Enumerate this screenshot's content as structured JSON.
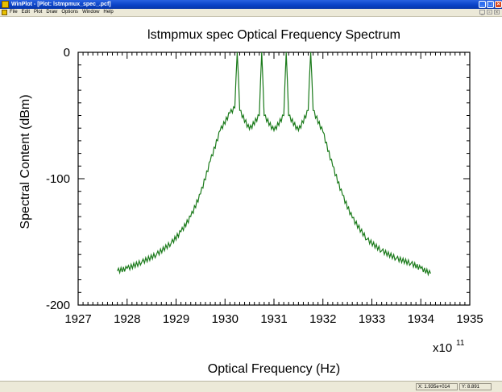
{
  "window": {
    "title": "WinPlot - [Plot: lstmpmux_spec_.pcf]",
    "min_glyph": "_",
    "max_glyph": "□",
    "close_glyph": "×"
  },
  "menu": {
    "items": [
      {
        "label": "File"
      },
      {
        "label": "Edit"
      },
      {
        "label": "Plot"
      },
      {
        "label": "Draw"
      },
      {
        "label": "Options"
      },
      {
        "label": "Window"
      },
      {
        "label": "Help"
      }
    ],
    "doc_min": "_",
    "doc_restore": "▫",
    "doc_close": "×"
  },
  "status": {
    "x_readout": "X: 1.935e+014",
    "y_readout": "Y: 8.891"
  },
  "chart_data": {
    "type": "line",
    "title": "lstmpmux spec  Optical Frequency Spectrum",
    "xlabel": "Optical Frequency (Hz)",
    "ylabel": "Spectral Content (dBm)",
    "x_multiplier": "x10",
    "x_exponent": "11",
    "xlim": [
      1927,
      1935
    ],
    "ylim": [
      -200,
      0
    ],
    "x_ticks": [
      1927,
      1928,
      1929,
      1930,
      1931,
      1932,
      1933,
      1934,
      1935
    ],
    "y_ticks": [
      0,
      -100,
      -200
    ],
    "x_tick_labels": [
      "1927",
      "1928",
      "1929",
      "1930",
      "1931",
      "1932",
      "1933",
      "1934",
      "1935"
    ],
    "y_tick_labels": [
      "0",
      "-100",
      "-200"
    ],
    "grid": false,
    "line_color": "#1a7a1a",
    "series": [
      {
        "x": [
          1927.8,
          1928.0,
          1928.3,
          1928.6,
          1928.9,
          1929.1,
          1929.3,
          1929.5,
          1929.7,
          1929.9,
          1930.1,
          1930.2,
          1930.25,
          1930.3,
          1930.5,
          1930.7,
          1930.75,
          1930.8,
          1931.0,
          1931.2,
          1931.25,
          1931.3,
          1931.5,
          1931.7,
          1931.75,
          1931.8,
          1932.0,
          1932.2,
          1932.4,
          1932.6,
          1932.9,
          1933.2,
          1933.5,
          1933.8,
          1934.0,
          1934.2
        ],
        "y": [
          -173,
          -171,
          -166,
          -160,
          -151,
          -142,
          -130,
          -112,
          -86,
          -62,
          -48,
          -44,
          0,
          -46,
          -61,
          -50,
          0,
          -50,
          -62,
          -50,
          0,
          -50,
          -62,
          -46,
          0,
          -46,
          -63,
          -90,
          -113,
          -131,
          -148,
          -157,
          -163,
          -167,
          -171,
          -175
        ]
      }
    ]
  }
}
